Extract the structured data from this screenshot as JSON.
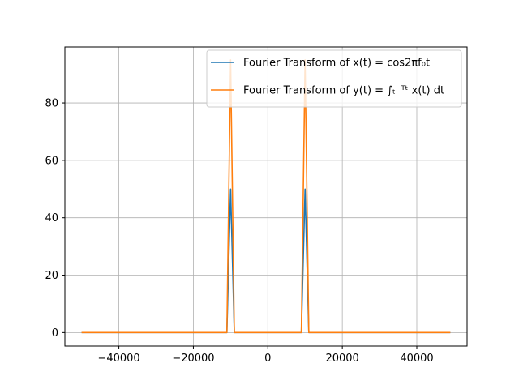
{
  "chart_data": {
    "type": "line",
    "xlim": [
      -54500,
      53500
    ],
    "ylim": [
      -4.7,
      99.5
    ],
    "grid": true,
    "legend_placement": "upper-right",
    "xticks": [
      -40000,
      -20000,
      0,
      20000,
      40000
    ],
    "xtick_labels": [
      "−40000",
      "−20000",
      "0",
      "20000",
      "40000"
    ],
    "yticks": [
      0,
      20,
      40,
      60,
      80
    ],
    "ytick_labels": [
      "0",
      "20",
      "40",
      "60",
      "80"
    ],
    "series": [
      {
        "name": "Fourier Transform of x(t) = cos2πf₀t",
        "color": "#1f77b4",
        "x": [
          -50000,
          -11000,
          -10000,
          -9000,
          9000,
          10000,
          11000,
          49000
        ],
        "y": [
          0,
          0,
          50,
          0,
          0,
          50,
          0,
          0
        ]
      },
      {
        "name": "Fourier Transform of y(t) = ∫ₜ₋ᵀᵗ x(t) dt",
        "color": "#ff7f0e",
        "x": [
          -50000,
          -11000,
          -10000,
          -9000,
          9000,
          10000,
          11000,
          49000
        ],
        "y": [
          0,
          0,
          95,
          0,
          0,
          95,
          0,
          0
        ]
      }
    ]
  }
}
